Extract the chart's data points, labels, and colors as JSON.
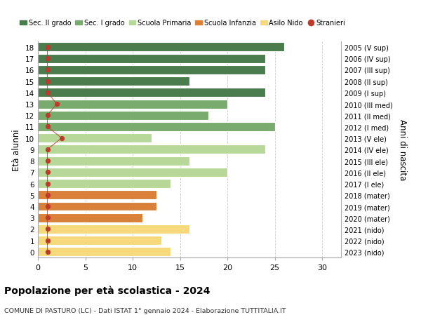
{
  "ages": [
    18,
    17,
    16,
    15,
    14,
    13,
    12,
    11,
    10,
    9,
    8,
    7,
    6,
    5,
    4,
    3,
    2,
    1,
    0
  ],
  "right_labels": [
    "2005 (V sup)",
    "2006 (IV sup)",
    "2007 (III sup)",
    "2008 (II sup)",
    "2009 (I sup)",
    "2010 (III med)",
    "2011 (II med)",
    "2012 (I med)",
    "2013 (V ele)",
    "2014 (IV ele)",
    "2015 (III ele)",
    "2016 (II ele)",
    "2017 (I ele)",
    "2018 (mater)",
    "2019 (mater)",
    "2020 (mater)",
    "2021 (nido)",
    "2022 (nido)",
    "2023 (nido)"
  ],
  "bar_values": [
    26,
    24,
    24,
    16,
    24,
    20,
    18,
    25,
    12,
    24,
    16,
    20,
    14,
    12.5,
    12.5,
    11,
    16,
    13,
    14
  ],
  "bar_colors": [
    "#4a7c4e",
    "#4a7c4e",
    "#4a7c4e",
    "#4a7c4e",
    "#4a7c4e",
    "#7aab6e",
    "#7aab6e",
    "#7aab6e",
    "#b8d89a",
    "#b8d89a",
    "#b8d89a",
    "#b8d89a",
    "#b8d89a",
    "#d9813a",
    "#d9813a",
    "#d9813a",
    "#f5d97a",
    "#f5d97a",
    "#f5d97a"
  ],
  "stranieri_x": [
    1,
    1,
    1,
    1,
    1,
    2,
    1,
    1,
    2.5,
    1,
    1,
    1,
    1,
    1,
    1,
    1,
    1,
    1,
    1
  ],
  "legend_labels": [
    "Sec. II grado",
    "Sec. I grado",
    "Scuola Primaria",
    "Scuola Infanzia",
    "Asilo Nido",
    "Stranieri"
  ],
  "legend_colors": [
    "#4a7c4e",
    "#7aab6e",
    "#b8d89a",
    "#d9813a",
    "#f5d97a",
    "#c0392b"
  ],
  "title": "Popolazione per età scolastica - 2024",
  "subtitle": "COMUNE DI PASTURO (LC) - Dati ISTAT 1° gennaio 2024 - Elaborazione TUTTITALIA.IT",
  "ylabel_left": "Età alunni",
  "ylabel_right": "Anni di nascita",
  "xlim": [
    0,
    32
  ],
  "bg_color": "#ffffff",
  "grid_color": "#cccccc",
  "bar_edge_color": "#ffffff",
  "stranieri_color": "#c0392b"
}
